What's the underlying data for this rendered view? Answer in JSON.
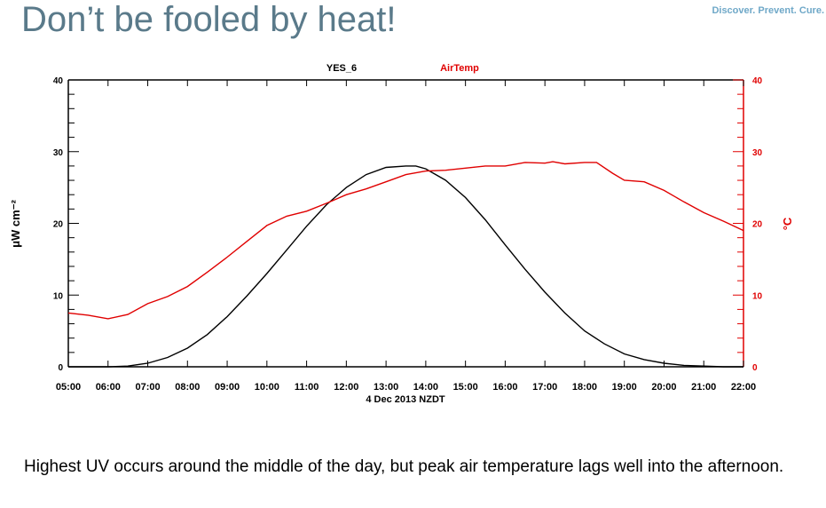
{
  "slide": {
    "title": "Don’t be fooled by heat!",
    "tagline": "Discover. Prevent. Cure.",
    "caption": "Highest UV occurs around the middle of the day, but peak air temperature lags well into the afternoon."
  },
  "colors": {
    "uv": "#000000",
    "airtemp": "#e00000",
    "title": "#5a7a8a"
  },
  "chart_data": {
    "type": "line",
    "xlabel": "4 Dec 2013  NZDT",
    "ylabel_left": "μW cm⁻²",
    "ylabel_right": "°C",
    "x_ticks": [
      "05:00",
      "06:00",
      "07:00",
      "08:00",
      "09:00",
      "10:00",
      "11:00",
      "12:00",
      "13:00",
      "14:00",
      "15:00",
      "16:00",
      "17:00",
      "18:00",
      "19:00",
      "20:00",
      "21:00",
      "22:00"
    ],
    "y_ticks_left": [
      "0",
      "10",
      "20",
      "30",
      "40"
    ],
    "y_ticks_right": [
      "0",
      "10",
      "20",
      "30",
      "40"
    ],
    "ylim_left": [
      0,
      40
    ],
    "ylim_right": [
      0,
      40
    ],
    "xlim": [
      5,
      22
    ],
    "series": [
      {
        "name": "YES_6",
        "axis": "left",
        "x": [
          5,
          6,
          6.5,
          7,
          7.5,
          8,
          8.5,
          9,
          9.5,
          10,
          10.5,
          11,
          11.5,
          12,
          12.5,
          13,
          13.5,
          13.75,
          14,
          14.5,
          15,
          15.5,
          16,
          16.5,
          17,
          17.5,
          18,
          18.5,
          19,
          19.5,
          20,
          20.5,
          21,
          21.5,
          22
        ],
        "y": [
          0,
          0,
          0.1,
          0.5,
          1.3,
          2.6,
          4.5,
          7,
          9.9,
          13,
          16.3,
          19.6,
          22.6,
          25,
          26.8,
          27.8,
          28,
          28,
          27.6,
          26,
          23.6,
          20.5,
          17,
          13.6,
          10.4,
          7.5,
          5,
          3.2,
          1.8,
          1,
          0.5,
          0.2,
          0.1,
          0,
          0
        ]
      },
      {
        "name": "AirTemp",
        "axis": "right",
        "x": [
          5,
          5.5,
          6,
          6.5,
          7,
          7.5,
          8,
          8.5,
          9,
          9.5,
          10,
          10.5,
          11,
          11.5,
          12,
          12.5,
          13,
          13.5,
          14,
          14.5,
          15,
          15.5,
          16,
          16.5,
          17,
          17.2,
          17.5,
          18,
          18.3,
          18.7,
          19,
          19.5,
          20,
          20.5,
          21,
          21.5,
          22
        ],
        "y": [
          7.5,
          7.2,
          6.7,
          7.3,
          8.8,
          9.8,
          11.2,
          13.2,
          15.3,
          17.5,
          19.7,
          21,
          21.7,
          22.8,
          24,
          24.8,
          25.8,
          26.8,
          27.3,
          27.4,
          27.7,
          28,
          28,
          28.5,
          28.4,
          28.6,
          28.3,
          28.5,
          28.5,
          27,
          26,
          25.8,
          24.6,
          23,
          21.5,
          20.3,
          19
        ]
      }
    ]
  }
}
